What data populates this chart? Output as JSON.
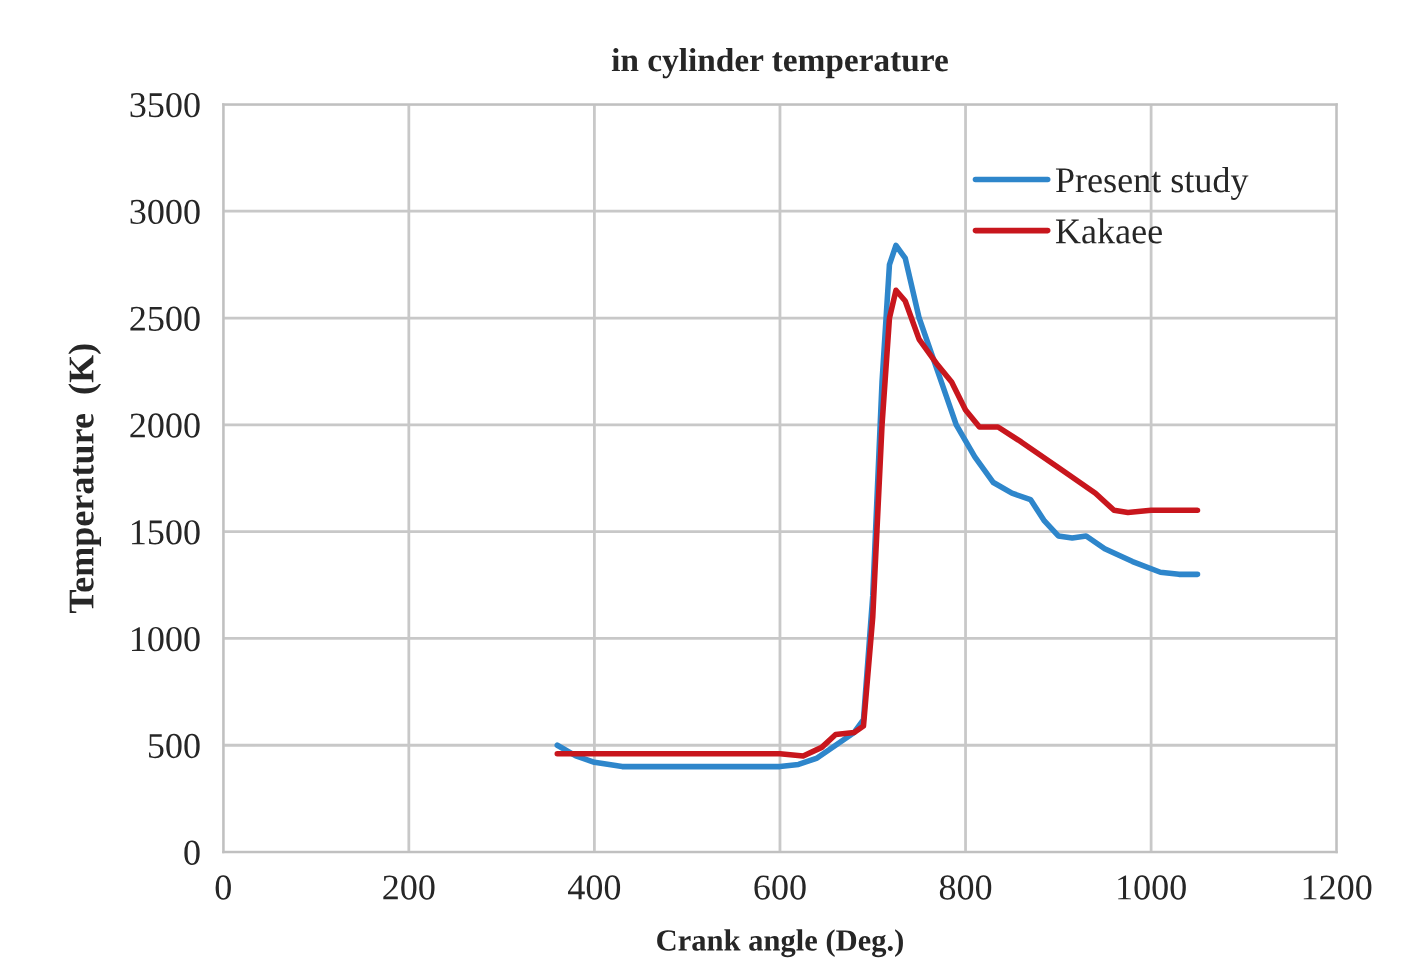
{
  "chart_data": {
    "type": "line",
    "title": "in cylinder temperature",
    "xlabel": "Crank angle (Deg.)",
    "ylabel": "Temperature  (K)",
    "xlim": [
      0,
      1200
    ],
    "xticks": [
      0,
      200,
      400,
      600,
      800,
      1000,
      1200
    ],
    "ylim": [
      0,
      3500
    ],
    "yticks": [
      0,
      500,
      1000,
      1500,
      2000,
      2500,
      3000,
      3500
    ],
    "grid": true,
    "legend": "top right",
    "series": [
      {
        "name": "Present study",
        "color": "#2e86cb",
        "x": [
          360,
          380,
          400,
          430,
          500,
          600,
          620,
          640,
          660,
          680,
          690,
          700,
          710,
          718,
          725,
          735,
          750,
          770,
          790,
          810,
          830,
          850,
          870,
          885,
          900,
          915,
          930,
          950,
          980,
          1010,
          1030,
          1050
        ],
        "values": [
          500,
          450,
          420,
          400,
          400,
          400,
          410,
          440,
          500,
          560,
          620,
          1200,
          2200,
          2750,
          2840,
          2780,
          2500,
          2250,
          2000,
          1850,
          1730,
          1680,
          1650,
          1550,
          1480,
          1470,
          1480,
          1420,
          1360,
          1310,
          1300,
          1300
        ]
      },
      {
        "name": "Kakaee",
        "color": "#c8161d",
        "x": [
          360,
          500,
          600,
          625,
          645,
          660,
          680,
          690,
          700,
          710,
          718,
          725,
          735,
          750,
          770,
          785,
          800,
          815,
          835,
          860,
          900,
          940,
          960,
          975,
          1000,
          1050
        ],
        "values": [
          460,
          460,
          460,
          450,
          490,
          550,
          560,
          590,
          1100,
          2000,
          2500,
          2630,
          2580,
          2400,
          2280,
          2200,
          2070,
          1990,
          1990,
          1920,
          1800,
          1680,
          1600,
          1590,
          1600,
          1600
        ]
      }
    ]
  }
}
